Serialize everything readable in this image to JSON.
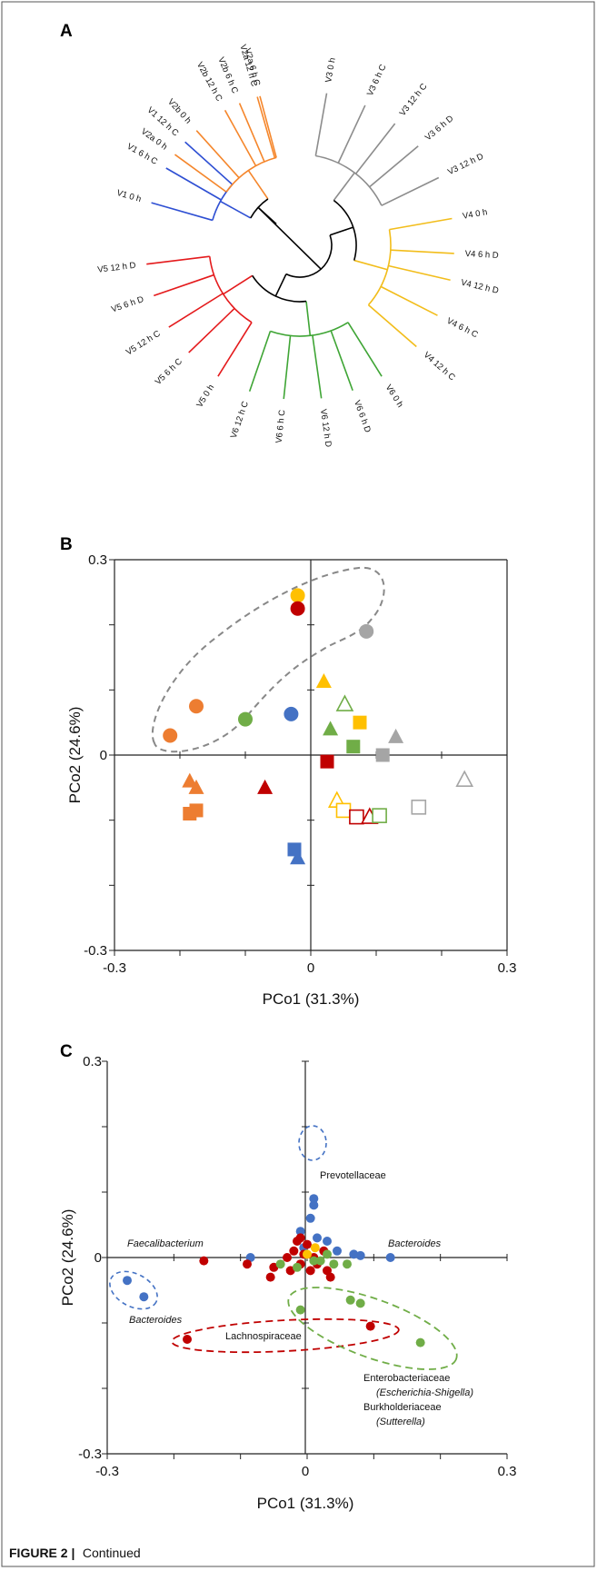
{
  "figure": {
    "caption_label": "FIGURE 2 |",
    "caption_text": "Continued"
  },
  "colors": {
    "V1": "#2e4fd3",
    "V2": "#f5862b",
    "V3": "#8c8c8c",
    "V4": "#f2bd1b",
    "V5": "#e41a1c",
    "V6": "#3fa535",
    "blue_pt": "#4472c4",
    "orange_pt": "#ed7d31",
    "grey_pt": "#a5a5a5",
    "yellow_pt": "#ffc000",
    "red_pt": "#c00000",
    "green_pt": "#70ad47"
  },
  "panel_a": {
    "label": "A",
    "leaves": [
      {
        "label": "V2a 6 h C",
        "group": "V2"
      },
      {
        "label": "V3 0 h",
        "group": "V3"
      },
      {
        "label": "V3 6 h C",
        "group": "V3"
      },
      {
        "label": "V3 12 h C",
        "group": "V3"
      },
      {
        "label": "V3 6 h D",
        "group": "V3"
      },
      {
        "label": "V3 12 h D",
        "group": "V3"
      },
      {
        "label": "V4 0 h",
        "group": "V4"
      },
      {
        "label": "V4 6 h D",
        "group": "V4"
      },
      {
        "label": "V4 12 h D",
        "group": "V4"
      },
      {
        "label": "V4 6 h C",
        "group": "V4"
      },
      {
        "label": "V4 12 h C",
        "group": "V4"
      },
      {
        "label": "V6 0 h",
        "group": "V6"
      },
      {
        "label": "V6 6 h D",
        "group": "V6"
      },
      {
        "label": "V6 12 h D",
        "group": "V6"
      },
      {
        "label": "V6 6 h C",
        "group": "V6"
      },
      {
        "label": "V6 12 h C",
        "group": "V6"
      },
      {
        "label": "V5 0 h",
        "group": "V5"
      },
      {
        "label": "V5 6 h C",
        "group": "V5"
      },
      {
        "label": "V5 12 h C",
        "group": "V5"
      },
      {
        "label": "V5 6 h D",
        "group": "V5"
      },
      {
        "label": "V5 12 h D",
        "group": "V5"
      },
      {
        "label": "V1 0 h",
        "group": "V1"
      },
      {
        "label": "V1 6 h C",
        "group": "V1"
      },
      {
        "label": "V1 12 h C",
        "group": "V1"
      },
      {
        "label": "V2a 0 h",
        "group": "V2"
      },
      {
        "label": "V2b 0 h",
        "group": "V2"
      },
      {
        "label": "V2b 12 h C",
        "group": "V2"
      },
      {
        "label": "V2b 6 h C",
        "group": "V2"
      },
      {
        "label": "V2a 12 h C",
        "group": "V2"
      }
    ]
  },
  "chart_data": [
    {
      "panel": "B",
      "type": "scatter",
      "xlabel": "PCo1 (31.3%)",
      "ylabel": "PCo2 (24.6%)",
      "xlim": [
        -0.3,
        0.3
      ],
      "ylim": [
        -0.3,
        0.3
      ],
      "x_ticks": [
        "-0.3",
        "0",
        "0.3"
      ],
      "y_ticks": [
        "0.3",
        "0",
        "-0.3"
      ],
      "points": [
        {
          "x": -0.02,
          "y": 0.245,
          "shape": "circle",
          "color": "yellow_pt",
          "filled": true
        },
        {
          "x": -0.02,
          "y": 0.225,
          "shape": "circle",
          "color": "red_pt",
          "filled": true
        },
        {
          "x": 0.085,
          "y": 0.19,
          "shape": "circle",
          "color": "grey_pt",
          "filled": true
        },
        {
          "x": -0.175,
          "y": 0.075,
          "shape": "circle",
          "color": "orange_pt",
          "filled": true
        },
        {
          "x": -0.215,
          "y": 0.03,
          "shape": "circle",
          "color": "orange_pt",
          "filled": true
        },
        {
          "x": -0.1,
          "y": 0.055,
          "shape": "circle",
          "color": "green_pt",
          "filled": true
        },
        {
          "x": -0.03,
          "y": 0.063,
          "shape": "circle",
          "color": "blue_pt",
          "filled": true
        },
        {
          "x": 0.02,
          "y": 0.113,
          "shape": "triangle",
          "color": "yellow_pt",
          "filled": true
        },
        {
          "x": 0.052,
          "y": 0.078,
          "shape": "triangle",
          "color": "green_pt",
          "filled": false
        },
        {
          "x": 0.03,
          "y": 0.04,
          "shape": "triangle",
          "color": "green_pt",
          "filled": true
        },
        {
          "x": 0.075,
          "y": 0.05,
          "shape": "square",
          "color": "yellow_pt",
          "filled": true
        },
        {
          "x": 0.065,
          "y": 0.013,
          "shape": "square",
          "color": "green_pt",
          "filled": true
        },
        {
          "x": 0.13,
          "y": 0.028,
          "shape": "triangle",
          "color": "grey_pt",
          "filled": true
        },
        {
          "x": 0.11,
          "y": 0.0,
          "shape": "square",
          "color": "grey_pt",
          "filled": true
        },
        {
          "x": 0.025,
          "y": -0.01,
          "shape": "square",
          "color": "red_pt",
          "filled": true
        },
        {
          "x": -0.185,
          "y": -0.04,
          "shape": "triangle",
          "color": "orange_pt",
          "filled": true
        },
        {
          "x": -0.175,
          "y": -0.05,
          "shape": "triangle",
          "color": "orange_pt",
          "filled": true
        },
        {
          "x": -0.185,
          "y": -0.09,
          "shape": "square",
          "color": "orange_pt",
          "filled": true
        },
        {
          "x": -0.175,
          "y": -0.085,
          "shape": "square",
          "color": "orange_pt",
          "filled": true
        },
        {
          "x": -0.07,
          "y": -0.05,
          "shape": "triangle",
          "color": "red_pt",
          "filled": true
        },
        {
          "x": 0.04,
          "y": -0.07,
          "shape": "triangle",
          "color": "yellow_pt",
          "filled": false
        },
        {
          "x": 0.05,
          "y": -0.085,
          "shape": "square",
          "color": "yellow_pt",
          "filled": false
        },
        {
          "x": 0.07,
          "y": -0.095,
          "shape": "square",
          "color": "red_pt",
          "filled": false
        },
        {
          "x": 0.09,
          "y": -0.095,
          "shape": "triangle",
          "color": "red_pt",
          "filled": false
        },
        {
          "x": 0.105,
          "y": -0.093,
          "shape": "square",
          "color": "green_pt",
          "filled": false
        },
        {
          "x": 0.165,
          "y": -0.08,
          "shape": "square",
          "color": "grey_pt",
          "filled": false
        },
        {
          "x": 0.235,
          "y": -0.038,
          "shape": "triangle",
          "color": "grey_pt",
          "filled": false
        },
        {
          "x": -0.025,
          "y": -0.145,
          "shape": "square",
          "color": "blue_pt",
          "filled": true
        },
        {
          "x": -0.02,
          "y": -0.158,
          "shape": "triangle",
          "color": "blue_pt",
          "filled": true
        }
      ]
    },
    {
      "panel": "C",
      "type": "scatter",
      "xlabel": "PCo1 (31.3%)",
      "ylabel": "PCo2 (24.6%)",
      "xlim": [
        -0.3,
        0.3
      ],
      "ylim": [
        -0.3,
        0.3
      ],
      "x_ticks": [
        "-0.3",
        "0",
        "0.3"
      ],
      "y_ticks": [
        "0.3",
        "0",
        "-0.3"
      ],
      "annotations": [
        {
          "text": "Prevotellaceae",
          "italic": false
        },
        {
          "text": "Faecalibacterium",
          "italic": true
        },
        {
          "text": "Bacteroides",
          "italic": true
        },
        {
          "text": "Bacteroides",
          "italic": true
        },
        {
          "text": "Lachnospiraceae",
          "italic": false
        },
        {
          "text": "Enterobacteriaceae",
          "italic": false
        },
        {
          "text": "(Escherichia-Shigella)",
          "italic": true
        },
        {
          "text": "Burkholderiaceae",
          "italic": false
        },
        {
          "text": "(Sutterella)",
          "italic": true
        }
      ],
      "points": [
        {
          "x": 0.01,
          "y": 0.09,
          "color": "blue_pt"
        },
        {
          "x": 0.01,
          "y": 0.08,
          "color": "blue_pt"
        },
        {
          "x": 0.005,
          "y": 0.06,
          "color": "blue_pt"
        },
        {
          "x": -0.27,
          "y": -0.035,
          "color": "blue_pt"
        },
        {
          "x": -0.245,
          "y": -0.06,
          "color": "blue_pt"
        },
        {
          "x": 0.125,
          "y": 0.0,
          "color": "blue_pt"
        },
        {
          "x": -0.085,
          "y": 0.0,
          "color": "blue_pt"
        },
        {
          "x": 0.03,
          "y": 0.025,
          "color": "blue_pt"
        },
        {
          "x": -0.01,
          "y": 0.04,
          "color": "blue_pt"
        },
        {
          "x": 0.045,
          "y": 0.01,
          "color": "blue_pt"
        },
        {
          "x": 0.07,
          "y": 0.005,
          "color": "blue_pt"
        },
        {
          "x": -0.005,
          "y": 0.015,
          "color": "blue_pt"
        },
        {
          "x": 0.08,
          "y": 0.003,
          "color": "blue_pt"
        },
        {
          "x": 0.015,
          "y": 0.03,
          "color": "blue_pt"
        },
        {
          "x": -0.155,
          "y": -0.005,
          "color": "red_pt"
        },
        {
          "x": -0.18,
          "y": -0.125,
          "color": "red_pt"
        },
        {
          "x": 0.095,
          "y": -0.105,
          "color": "red_pt"
        },
        {
          "x": -0.09,
          "y": -0.01,
          "color": "red_pt"
        },
        {
          "x": -0.05,
          "y": -0.015,
          "color": "red_pt"
        },
        {
          "x": -0.055,
          "y": -0.03,
          "color": "red_pt"
        },
        {
          "x": -0.025,
          "y": -0.02,
          "color": "red_pt"
        },
        {
          "x": -0.01,
          "y": 0.03,
          "color": "red_pt"
        },
        {
          "x": -0.02,
          "y": 0.01,
          "color": "red_pt"
        },
        {
          "x": -0.03,
          "y": 0.0,
          "color": "red_pt"
        },
        {
          "x": 0.0,
          "y": 0.02,
          "color": "red_pt"
        },
        {
          "x": 0.015,
          "y": -0.01,
          "color": "red_pt"
        },
        {
          "x": 0.03,
          "y": -0.02,
          "color": "red_pt"
        },
        {
          "x": -0.01,
          "y": -0.01,
          "color": "red_pt"
        },
        {
          "x": 0.005,
          "y": -0.02,
          "color": "red_pt"
        },
        {
          "x": 0.025,
          "y": 0.01,
          "color": "red_pt"
        },
        {
          "x": -0.015,
          "y": 0.025,
          "color": "red_pt"
        },
        {
          "x": 0.01,
          "y": 0.0,
          "color": "red_pt"
        },
        {
          "x": 0.035,
          "y": -0.03,
          "color": "red_pt"
        },
        {
          "x": -0.005,
          "y": 0.005,
          "color": "red_pt"
        },
        {
          "x": 0.17,
          "y": -0.13,
          "color": "green_pt"
        },
        {
          "x": 0.065,
          "y": -0.065,
          "color": "green_pt"
        },
        {
          "x": 0.08,
          "y": -0.07,
          "color": "green_pt"
        },
        {
          "x": -0.01,
          "y": -0.08,
          "color": "green_pt"
        },
        {
          "x": 0.02,
          "y": -0.005,
          "color": "green_pt"
        },
        {
          "x": 0.04,
          "y": -0.01,
          "color": "green_pt"
        },
        {
          "x": 0.06,
          "y": -0.01,
          "color": "green_pt"
        },
        {
          "x": -0.04,
          "y": -0.01,
          "color": "green_pt"
        },
        {
          "x": 0.03,
          "y": 0.005,
          "color": "green_pt"
        },
        {
          "x": -0.015,
          "y": -0.015,
          "color": "green_pt"
        },
        {
          "x": 0.01,
          "y": -0.005,
          "color": "green_pt"
        },
        {
          "x": 0.0,
          "y": 0.005,
          "color": "yellow_pt"
        },
        {
          "x": 0.012,
          "y": 0.015,
          "color": "yellow_pt"
        }
      ]
    }
  ],
  "panel_labels": {
    "b": "B",
    "c": "C"
  }
}
